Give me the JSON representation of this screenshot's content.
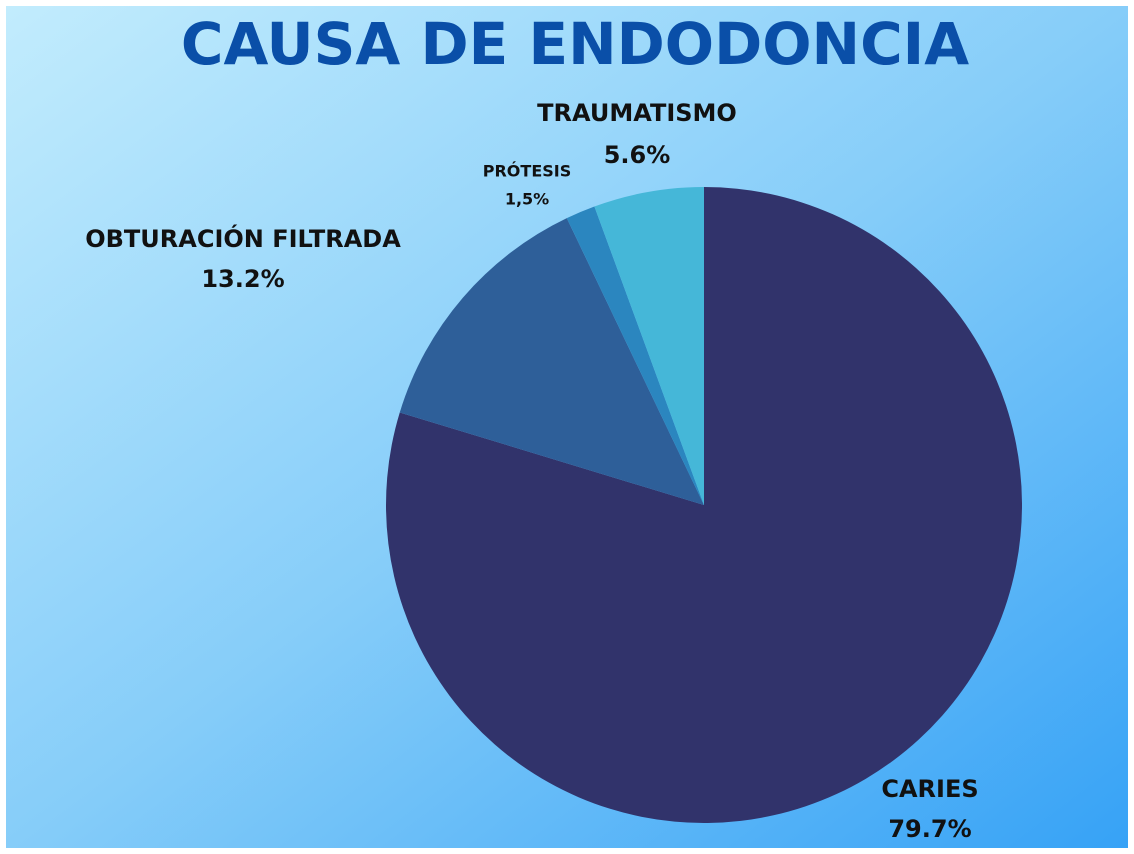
{
  "chart_data": {
    "type": "pie",
    "title": "CAUSA DE ENDODONCIA",
    "categories": [
      "CARIES",
      "OBTURACIÓN FILTRADA",
      "PRÓTESIS",
      "TRAUMATISMO"
    ],
    "values": [
      79.7,
      13.2,
      1.5,
      5.6
    ],
    "value_labels": [
      "79.7%",
      "13.2%",
      "1,5%",
      "5.6%"
    ],
    "colors": [
      "#31336b",
      "#2e5f99",
      "#2b86bf",
      "#45b7d8"
    ]
  }
}
